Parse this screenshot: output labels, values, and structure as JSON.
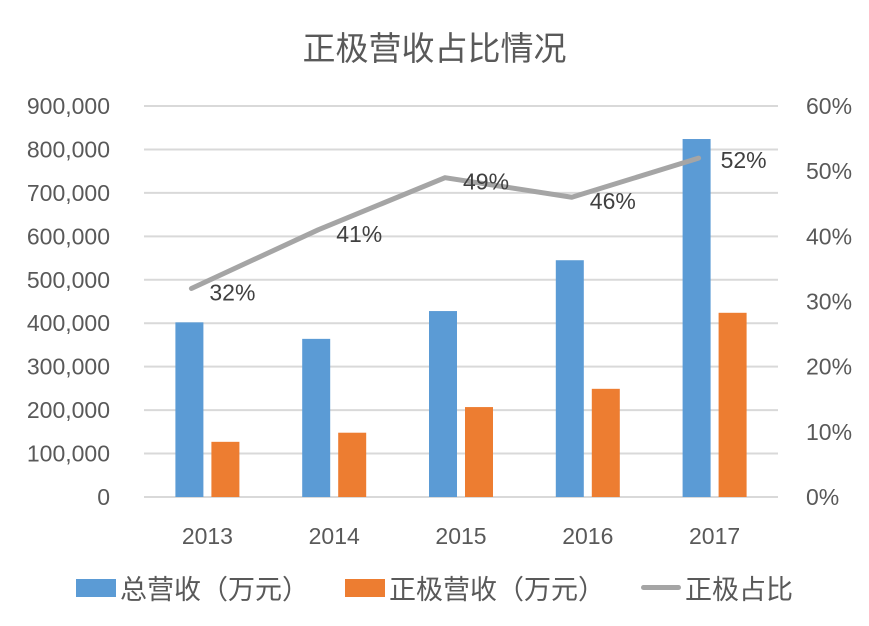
{
  "chart_data": {
    "type": "bar",
    "title": "正极营收占比情况",
    "categories": [
      "2013",
      "2014",
      "2015",
      "2016",
      "2017"
    ],
    "series": [
      {
        "name": "总营收（万元）",
        "type": "bar",
        "axis": "left",
        "color": "#5B9BD5",
        "values": [
          402000,
          364000,
          428000,
          545000,
          824000
        ]
      },
      {
        "name": "正极营收（万元）",
        "type": "bar",
        "axis": "left",
        "color": "#ED7D31",
        "values": [
          127000,
          148000,
          207000,
          249000,
          424000
        ]
      },
      {
        "name": "正极占比",
        "type": "line",
        "axis": "right",
        "color": "#A5A5A5",
        "values": [
          0.32,
          0.41,
          0.49,
          0.46,
          0.52
        ],
        "labels": [
          "32%",
          "41%",
          "49%",
          "46%",
          "52%"
        ]
      }
    ],
    "left_axis": {
      "ylim": [
        0,
        900000
      ],
      "ticks": [
        "0",
        "100,000",
        "200,000",
        "300,000",
        "400,000",
        "500,000",
        "600,000",
        "700,000",
        "800,000",
        "900,000"
      ]
    },
    "right_axis": {
      "ylim": [
        0,
        0.6
      ],
      "ticks": [
        "0%",
        "10%",
        "20%",
        "30%",
        "40%",
        "50%",
        "60%"
      ]
    },
    "xlabel": "",
    "ylabel": "",
    "grid": true,
    "legend_position": "bottom"
  },
  "legend": [
    {
      "label": "总营收（万元）",
      "color": "#5B9BD5",
      "kind": "box"
    },
    {
      "label": "正极营收（万元）",
      "color": "#ED7D31",
      "kind": "box"
    },
    {
      "label": "正极占比",
      "color": "#A5A5A5",
      "kind": "line"
    }
  ]
}
